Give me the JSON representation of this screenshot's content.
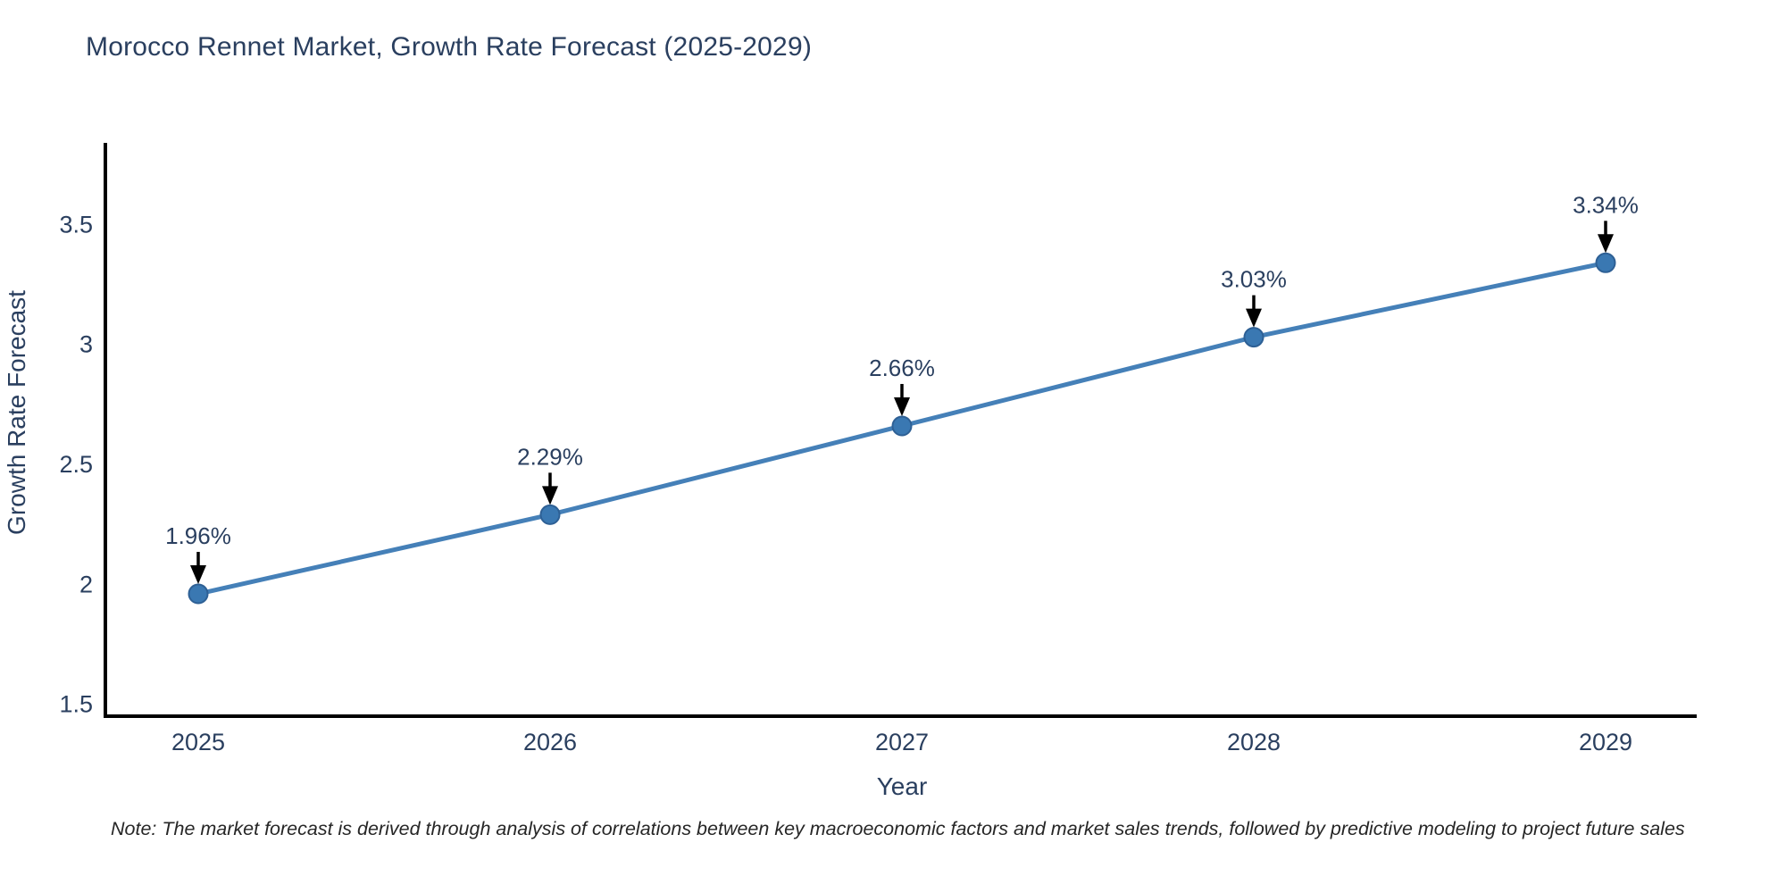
{
  "chart": {
    "title": "Morocco Rennet Market, Growth Rate Forecast (2025-2029)",
    "note": "Note: The market forecast is derived through analysis of correlations between key macroeconomic factors and market sales trends, followed by predictive modeling to project future sales"
  },
  "chart_data": {
    "type": "line",
    "title": "Morocco Rennet Market, Growth Rate Forecast (2025-2029)",
    "categories": [
      "2025",
      "2026",
      "2027",
      "2028",
      "2029"
    ],
    "series": [
      {
        "name": "Growth Rate Forecast",
        "values": [
          1.96,
          2.29,
          2.66,
          3.03,
          3.34
        ],
        "point_labels": [
          "1.96%",
          "2.29%",
          "2.66%",
          "3.03%",
          "3.34%"
        ]
      }
    ],
    "xlabel": "Year",
    "ylabel": "Growth Rate Forecast",
    "ylim": [
      1.45,
      3.84
    ],
    "yticks": [
      1.5,
      2,
      2.5,
      3,
      3.5
    ],
    "ytick_labels": [
      "1.5",
      "2",
      "2.5",
      "3",
      "3.5"
    ],
    "grid": false,
    "legend": false,
    "annotation_style": "black-down-arrow-to-point",
    "colors": {
      "line": "#4580b8",
      "marker": "#3a78b2",
      "marker_edge": "#2e6095",
      "axis": "#000000",
      "text": "#2a3f5f",
      "annotation_arrow": "#000000",
      "note_text": "#262626",
      "background": "#ffffff"
    }
  }
}
